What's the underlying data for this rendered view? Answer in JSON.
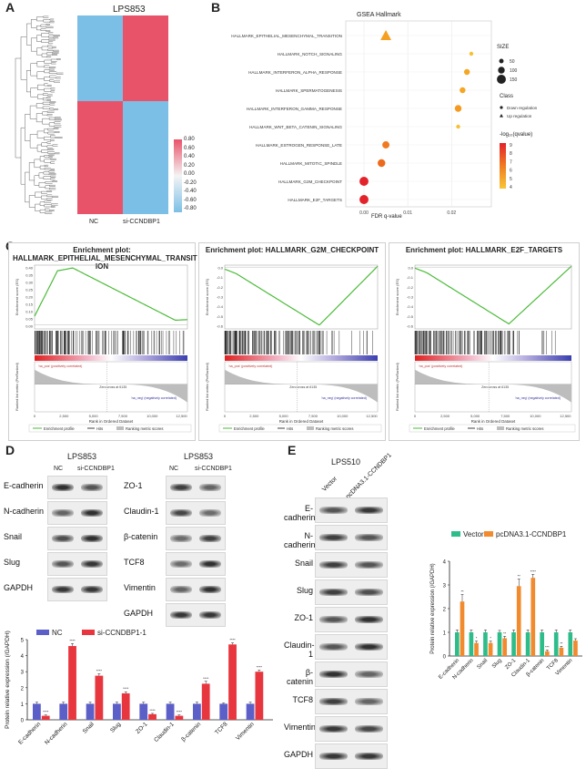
{
  "panels": {
    "a": "A",
    "b": "B",
    "c": "C",
    "d": "D",
    "e": "E"
  },
  "heatmap": {
    "title": "LPS853",
    "xlabels": [
      "NC",
      "si-CCNDBP1"
    ],
    "scale": [
      "0.80",
      "0.60",
      "0.40",
      "0.20",
      "0.00",
      "-0.20",
      "-0.40",
      "-0.60",
      "-0.80"
    ]
  },
  "gsea": {
    "title": "GSEA Hallmark",
    "xlabel": "FDR q-value",
    "xticks": [
      "0.00",
      "0.01",
      "0.02"
    ],
    "terms": [
      {
        "name": "HALLMARK_EPITHELIAL_MESENCHYMAL_TRANSITION",
        "q": 0.005,
        "size": 150,
        "class": "up",
        "color": "#f5a020"
      },
      {
        "name": "HALLMARK_NOTCH_SIGNALING",
        "q": 0.0245,
        "size": 40,
        "class": "down",
        "color": "#f7c030"
      },
      {
        "name": "HALLMARK_INTERFERON_ALPHA_RESPONSE",
        "q": 0.0235,
        "size": 80,
        "class": "down",
        "color": "#f5a623"
      },
      {
        "name": "HALLMARK_SPERMATOGENESIS",
        "q": 0.0225,
        "size": 80,
        "class": "down",
        "color": "#f5a623"
      },
      {
        "name": "HALLMARK_INTERFERON_GAMMA_RESPONSE",
        "q": 0.0215,
        "size": 100,
        "class": "down",
        "color": "#f59a20"
      },
      {
        "name": "HALLMARK_WNT_BETA_CATENIN_SIGNALING",
        "q": 0.0215,
        "size": 40,
        "class": "down",
        "color": "#f7c030"
      },
      {
        "name": "HALLMARK_ESTROGEN_RESPONSE_LATE",
        "q": 0.005,
        "size": 110,
        "class": "down",
        "color": "#ef7a1f"
      },
      {
        "name": "HALLMARK_MITOTIC_SPINDLE",
        "q": 0.004,
        "size": 120,
        "class": "down",
        "color": "#ec6a1c"
      },
      {
        "name": "HALLMARK_G2M_CHECKPOINT",
        "q": 0.0,
        "size": 150,
        "class": "down",
        "color": "#e3232b"
      },
      {
        "name": "HALLMARK_E2F_TARGETS",
        "q": 0.0,
        "size": 150,
        "class": "down",
        "color": "#e3232b"
      }
    ],
    "legend": {
      "size_title": "SIZE",
      "sizes": [
        "50",
        "100",
        "150"
      ],
      "class_title": "Class",
      "classes": [
        "Down regulation",
        "Up regulation"
      ],
      "color_title": "-log₁₀(qvalue)",
      "colors": [
        "9",
        "8",
        "7",
        "6",
        "5",
        "4"
      ]
    }
  },
  "enrichment": {
    "plots": [
      {
        "title": "Enrichment plot: HALLMARK_EPITHELIAL_MESENCHYMAL_TRANSIT ION",
        "xticks": [
          "0",
          "2,500",
          "5,000",
          "7,500",
          "10,000",
          "12,500"
        ],
        "yticks": [
          "0.40",
          "0.35",
          "0.30",
          "0.25",
          "0.20",
          "0.15",
          "0.10",
          "0.05",
          "0.00"
        ]
      },
      {
        "title": "Enrichment plot: HALLMARK_G2M_CHECKPOINT",
        "xticks": [
          "0",
          "2,500",
          "5,000",
          "7,500",
          "10,000",
          "12,500"
        ],
        "yticks": [
          "0.0",
          "-0.1",
          "-0.2",
          "-0.3",
          "-0.4",
          "-0.5",
          "-0.6"
        ]
      },
      {
        "title": "Enrichment plot: HALLMARK_E2F_TARGETS",
        "xticks": [
          "0",
          "2,500",
          "5,000",
          "7,500",
          "10,000",
          "12,500"
        ],
        "yticks": [
          "0.0",
          "-0.1",
          "-0.2",
          "-0.3",
          "-0.4",
          "-0.5",
          "-0.6"
        ]
      }
    ],
    "ylabel_top": "Enrichment score (ES)",
    "ylabel_bottom": "Ranked list metric (PreRanked)",
    "xlabel": "Rank in Ordered Dataset",
    "pos_label": "'na_pos' (positively correlated)",
    "neg_label": "'na_neg' (negatively correlated)",
    "zero_cross": "Zero cross at 6135",
    "legend": [
      "Enrichment profile",
      "Hits",
      "Ranking metric scores"
    ]
  },
  "wb_d": {
    "left": {
      "title": "LPS853",
      "cols": [
        "NC",
        "si-CCNDBP1"
      ],
      "rows": [
        "E-cadherin",
        "N-cadherin",
        "Snail",
        "Slug",
        "GAPDH"
      ]
    },
    "right": {
      "title": "LPS853",
      "cols": [
        "NC",
        "si-CCNDBP1"
      ],
      "rows": [
        "ZO-1",
        "Claudin-1",
        "β-catenin",
        "TCF8",
        "Vimentin",
        "GAPDH"
      ]
    }
  },
  "wb_e": {
    "title": "LPS510",
    "cols": [
      "Vector",
      "pcDNA3.1-CCNDBP1"
    ],
    "rows": [
      "E-cadherin",
      "N-cadherin",
      "Snail",
      "Slug",
      "ZO-1",
      "Claudin-1",
      "β-catenin",
      "TCF8",
      "Vimentin",
      "GAPDH"
    ]
  },
  "chart_data": [
    {
      "type": "bar",
      "title": "",
      "ylabel": "Protein relative expression (/GAPDH)",
      "ylim": [
        0,
        5
      ],
      "yticks": [
        "0",
        "1",
        "2",
        "3",
        "4",
        "5"
      ],
      "categories": [
        "E-cadherin",
        "N-cadherin",
        "Snail",
        "Slug",
        "ZO-1",
        "Claudin-1",
        "β-catenin",
        "TCF8",
        "Vimentin"
      ],
      "series": [
        {
          "name": "NC",
          "color": "#5b5fc7",
          "values": [
            1.0,
            1.0,
            1.0,
            1.0,
            1.0,
            1.0,
            1.0,
            1.0,
            1.0
          ],
          "errors": [
            0.1,
            0.1,
            0.1,
            0.1,
            0.1,
            0.1,
            0.1,
            0.05,
            0.1
          ]
        },
        {
          "name": "si-CCNDBP1-1",
          "color": "#e8363f",
          "values": [
            0.25,
            4.6,
            2.75,
            1.65,
            0.35,
            0.25,
            2.25,
            4.7,
            3.0
          ],
          "errors": [
            0.05,
            0.15,
            0.12,
            0.1,
            0.05,
            0.05,
            0.15,
            0.1,
            0.1
          ],
          "sig": [
            "****",
            "****",
            "****",
            "****",
            "****",
            "****",
            "****",
            "****",
            "****"
          ]
        }
      ]
    },
    {
      "type": "bar",
      "title": "",
      "ylabel": "Protein relative expression (/GAPDH)",
      "ylim": [
        0,
        4
      ],
      "yticks": [
        "0",
        "1",
        "2",
        "3",
        "4"
      ],
      "categories": [
        "E-cadherin",
        "N-cadherin",
        "Snail",
        "Slug",
        "ZO-1",
        "Claudin-1",
        "β-catenin",
        "TCF8",
        "Vimentin"
      ],
      "series": [
        {
          "name": "Vector",
          "color": "#2ebd8a",
          "values": [
            1.0,
            1.0,
            1.0,
            1.0,
            1.0,
            1.0,
            1.0,
            1.0,
            1.0
          ],
          "errors": [
            0.1,
            0.1,
            0.1,
            0.08,
            0.1,
            0.1,
            0.1,
            0.1,
            0.1
          ]
        },
        {
          "name": "pcDNA3.1-CCNDBP1",
          "color": "#f28a2e",
          "values": [
            2.3,
            0.55,
            0.55,
            0.75,
            2.95,
            3.3,
            0.2,
            0.35,
            0.65
          ],
          "errors": [
            0.3,
            0.08,
            0.08,
            0.08,
            0.3,
            0.15,
            0.05,
            0.06,
            0.08
          ],
          "sig": [
            "**",
            "*",
            "*",
            "**",
            "**",
            "****",
            "***",
            "**",
            ""
          ]
        }
      ]
    }
  ]
}
